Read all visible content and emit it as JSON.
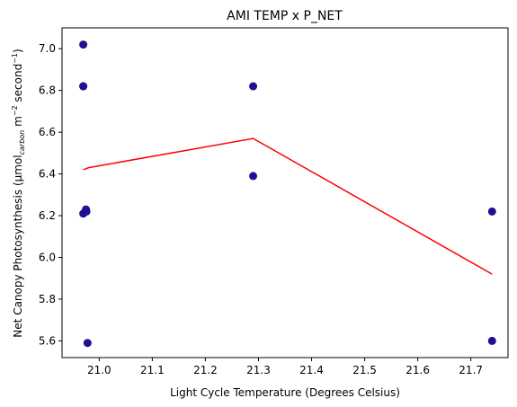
{
  "chart_data": {
    "type": "scatter",
    "title": "AMI TEMP x P_NET",
    "xlabel": "Light Cycle Temperature (Degrees Celsius)",
    "ylabel": {
      "prefix": "Net Canopy Photosynthesis (µmol",
      "sub": "carbon",
      "mid": " m",
      "sup1": "−2",
      "mid2": " second",
      "sup2": "−1",
      "suffix": ")"
    },
    "xlim": [
      20.93,
      21.77
    ],
    "ylim": [
      5.52,
      7.1
    ],
    "xticks": [
      21.0,
      21.1,
      21.2,
      21.3,
      21.4,
      21.5,
      21.6,
      21.7
    ],
    "xtick_labels": [
      "21.0",
      "21.1",
      "21.2",
      "21.3",
      "21.4",
      "21.5",
      "21.6",
      "21.7"
    ],
    "yticks": [
      5.6,
      5.8,
      6.0,
      6.2,
      6.4,
      6.6,
      6.8,
      7.0
    ],
    "ytick_labels": [
      "5.6",
      "5.8",
      "6.0",
      "6.2",
      "6.4",
      "6.6",
      "6.8",
      "7.0"
    ],
    "grid": false,
    "series": [
      {
        "kind": "scatter",
        "color": "#1f1290",
        "points": [
          {
            "x": 20.97,
            "y": 7.02
          },
          {
            "x": 20.97,
            "y": 6.82
          },
          {
            "x": 20.97,
            "y": 6.82
          },
          {
            "x": 20.97,
            "y": 6.21
          },
          {
            "x": 20.975,
            "y": 6.23
          },
          {
            "x": 20.976,
            "y": 6.22
          },
          {
            "x": 20.978,
            "y": 5.59
          },
          {
            "x": 21.29,
            "y": 6.82
          },
          {
            "x": 21.29,
            "y": 6.39
          },
          {
            "x": 21.74,
            "y": 6.22
          },
          {
            "x": 21.74,
            "y": 5.6
          }
        ]
      },
      {
        "kind": "line",
        "color": "#ff0000",
        "points": [
          {
            "x": 20.97,
            "y": 6.42
          },
          {
            "x": 20.98,
            "y": 6.43
          },
          {
            "x": 21.29,
            "y": 6.57
          },
          {
            "x": 21.74,
            "y": 5.92
          }
        ]
      }
    ]
  }
}
